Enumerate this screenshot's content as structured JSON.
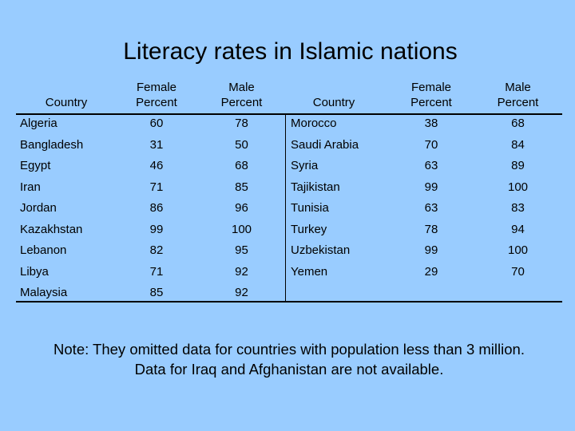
{
  "title": "Literacy rates in Islamic nations",
  "headers": {
    "country": "Country",
    "female": "Female Percent",
    "male": "Male Percent"
  },
  "rows": [
    {
      "left": {
        "country": "Algeria",
        "female": "60",
        "male": "78"
      },
      "right": {
        "country": "Morocco",
        "female": "38",
        "male": "68"
      }
    },
    {
      "left": {
        "country": "Bangladesh",
        "female": "31",
        "male": "50"
      },
      "right": {
        "country": "Saudi Arabia",
        "female": "70",
        "male": "84"
      }
    },
    {
      "left": {
        "country": "Egypt",
        "female": "46",
        "male": "68"
      },
      "right": {
        "country": "Syria",
        "female": "63",
        "male": "89"
      }
    },
    {
      "left": {
        "country": "Iran",
        "female": "71",
        "male": "85"
      },
      "right": {
        "country": "Tajikistan",
        "female": "99",
        "male": "100"
      }
    },
    {
      "left": {
        "country": "Jordan",
        "female": "86",
        "male": "96"
      },
      "right": {
        "country": "Tunisia",
        "female": "63",
        "male": "83"
      }
    },
    {
      "left": {
        "country": "Kazakhstan",
        "female": "99",
        "male": "100"
      },
      "right": {
        "country": "Turkey",
        "female": "78",
        "male": "94"
      }
    },
    {
      "left": {
        "country": "Lebanon",
        "female": "82",
        "male": "95"
      },
      "right": {
        "country": "Uzbekistan",
        "female": "99",
        "male": "100"
      }
    },
    {
      "left": {
        "country": "Libya",
        "female": "71",
        "male": "92"
      },
      "right": {
        "country": "Yemen",
        "female": "29",
        "male": "70"
      }
    },
    {
      "left": {
        "country": "Malaysia",
        "female": "85",
        "male": "92"
      },
      "right": {
        "country": "",
        "female": "",
        "male": ""
      }
    }
  ],
  "note": "Note: They omitted data for countries with population less than 3 million. Data for Iraq and Afghanistan are not available."
}
